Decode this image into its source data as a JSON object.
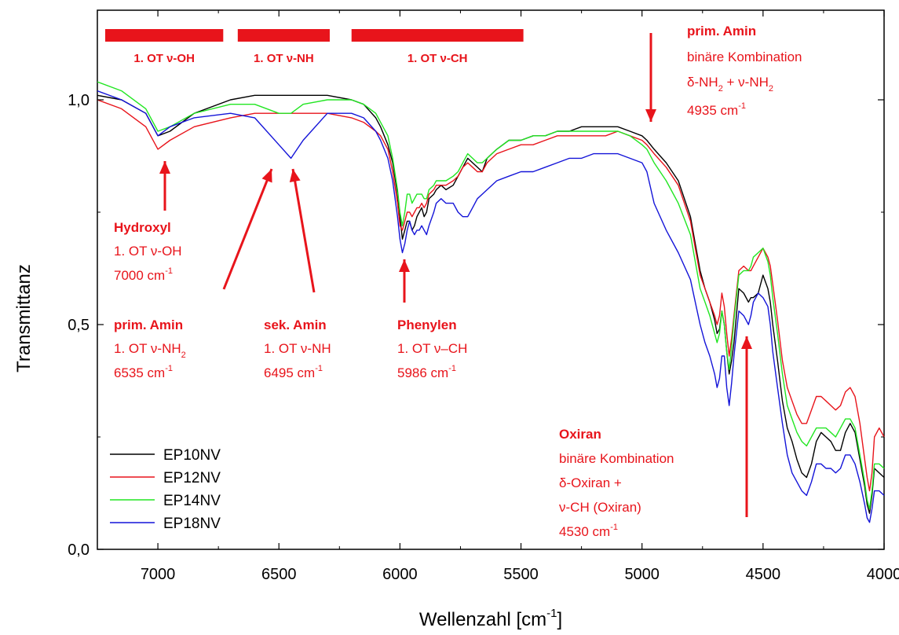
{
  "chart_data": {
    "type": "line",
    "title": "",
    "xlabel": "Wellenzahl [cm",
    "xlabel_sup": "-1",
    "xlabel_suffix": "]",
    "ylabel": "Transmittanz",
    "xlim": [
      7250,
      4000
    ],
    "ylim": [
      0,
      1.0
    ],
    "x_ticks": [
      {
        "value": 7000,
        "label": "7000"
      },
      {
        "value": 6500,
        "label": "6500"
      },
      {
        "value": 6000,
        "label": "6000"
      },
      {
        "value": 5500,
        "label": "5500"
      },
      {
        "value": 5000,
        "label": "5000"
      },
      {
        "value": 4500,
        "label": "4500"
      },
      {
        "value": 4000,
        "label": "4000"
      }
    ],
    "y_ticks": [
      {
        "value": 0.0,
        "label": "0,0"
      },
      {
        "value": 0.5,
        "label": "0,5"
      },
      {
        "value": 1.0,
        "label": "1,0"
      }
    ],
    "grid": false,
    "legend_position": "bottom-left",
    "colors": {
      "EP10NV": "#000000",
      "EP12NV": "#e8141b",
      "EP14NV": "#22e622",
      "EP18NV": "#1414d8",
      "annotation": "#e8141b"
    },
    "series": [
      {
        "name": "EP10NV",
        "color": "#000000",
        "x": [
          7250,
          7150,
          7050,
          7000,
          6950,
          6850,
          6700,
          6600,
          6500,
          6450,
          6400,
          6300,
          6200,
          6150,
          6100,
          6080,
          6050,
          6030,
          6010,
          6000,
          5990,
          5980,
          5970,
          5960,
          5950,
          5940,
          5930,
          5920,
          5910,
          5900,
          5890,
          5880,
          5860,
          5850,
          5830,
          5810,
          5780,
          5760,
          5740,
          5720,
          5700,
          5680,
          5660,
          5640,
          5620,
          5600,
          5550,
          5500,
          5450,
          5400,
          5350,
          5300,
          5250,
          5200,
          5150,
          5100,
          5050,
          5000,
          4980,
          4950,
          4900,
          4850,
          4800,
          4780,
          4760,
          4740,
          4720,
          4700,
          4690,
          4680,
          4670,
          4660,
          4650,
          4640,
          4630,
          4620,
          4600,
          4580,
          4560,
          4550,
          4540,
          4520,
          4500,
          4480,
          4470,
          4460,
          4440,
          4420,
          4400,
          4380,
          4360,
          4340,
          4320,
          4300,
          4280,
          4260,
          4240,
          4220,
          4200,
          4180,
          4160,
          4140,
          4120,
          4100,
          4080,
          4070,
          4060,
          4050,
          4040,
          4020,
          4000
        ],
        "y": [
          1.01,
          1.0,
          0.97,
          0.92,
          0.93,
          0.97,
          1.0,
          1.01,
          1.01,
          1.01,
          1.01,
          1.01,
          1.0,
          0.99,
          0.96,
          0.94,
          0.9,
          0.86,
          0.79,
          0.74,
          0.69,
          0.71,
          0.73,
          0.73,
          0.71,
          0.72,
          0.74,
          0.75,
          0.76,
          0.74,
          0.75,
          0.78,
          0.79,
          0.8,
          0.81,
          0.8,
          0.81,
          0.83,
          0.85,
          0.87,
          0.86,
          0.85,
          0.84,
          0.87,
          0.88,
          0.89,
          0.91,
          0.91,
          0.92,
          0.92,
          0.93,
          0.93,
          0.94,
          0.94,
          0.94,
          0.94,
          0.93,
          0.92,
          0.91,
          0.89,
          0.86,
          0.82,
          0.74,
          0.68,
          0.62,
          0.58,
          0.55,
          0.51,
          0.48,
          0.49,
          0.53,
          0.5,
          0.44,
          0.39,
          0.42,
          0.46,
          0.58,
          0.57,
          0.55,
          0.56,
          0.56,
          0.57,
          0.61,
          0.58,
          0.55,
          0.5,
          0.42,
          0.33,
          0.27,
          0.24,
          0.2,
          0.17,
          0.16,
          0.19,
          0.24,
          0.26,
          0.25,
          0.24,
          0.22,
          0.22,
          0.26,
          0.28,
          0.26,
          0.2,
          0.14,
          0.1,
          0.08,
          0.12,
          0.18,
          0.17,
          0.16
        ]
      },
      {
        "name": "EP12NV",
        "color": "#e8141b",
        "x": [
          7250,
          7150,
          7050,
          7000,
          6950,
          6850,
          6700,
          6600,
          6500,
          6450,
          6400,
          6300,
          6200,
          6150,
          6100,
          6080,
          6050,
          6030,
          6010,
          6000,
          5990,
          5980,
          5970,
          5960,
          5950,
          5940,
          5930,
          5920,
          5910,
          5900,
          5890,
          5880,
          5860,
          5850,
          5830,
          5810,
          5780,
          5760,
          5740,
          5720,
          5700,
          5680,
          5660,
          5640,
          5620,
          5600,
          5550,
          5500,
          5450,
          5400,
          5350,
          5300,
          5250,
          5200,
          5150,
          5100,
          5050,
          5000,
          4980,
          4950,
          4900,
          4850,
          4800,
          4780,
          4760,
          4740,
          4720,
          4700,
          4690,
          4680,
          4670,
          4660,
          4650,
          4640,
          4630,
          4620,
          4600,
          4580,
          4560,
          4550,
          4540,
          4520,
          4500,
          4480,
          4470,
          4460,
          4440,
          4420,
          4400,
          4380,
          4360,
          4340,
          4320,
          4300,
          4280,
          4260,
          4240,
          4220,
          4200,
          4180,
          4160,
          4140,
          4120,
          4100,
          4080,
          4070,
          4060,
          4050,
          4040,
          4020,
          4000
        ],
        "y": [
          1.0,
          0.98,
          0.94,
          0.89,
          0.91,
          0.94,
          0.96,
          0.97,
          0.97,
          0.97,
          0.97,
          0.97,
          0.96,
          0.95,
          0.93,
          0.92,
          0.89,
          0.84,
          0.77,
          0.72,
          0.71,
          0.73,
          0.75,
          0.75,
          0.74,
          0.75,
          0.76,
          0.76,
          0.77,
          0.76,
          0.77,
          0.79,
          0.8,
          0.81,
          0.81,
          0.81,
          0.82,
          0.83,
          0.85,
          0.86,
          0.85,
          0.84,
          0.84,
          0.86,
          0.87,
          0.88,
          0.89,
          0.9,
          0.9,
          0.91,
          0.92,
          0.92,
          0.92,
          0.92,
          0.92,
          0.93,
          0.92,
          0.91,
          0.9,
          0.88,
          0.85,
          0.81,
          0.73,
          0.67,
          0.61,
          0.58,
          0.55,
          0.52,
          0.5,
          0.52,
          0.57,
          0.54,
          0.48,
          0.43,
          0.47,
          0.52,
          0.62,
          0.63,
          0.62,
          0.62,
          0.63,
          0.65,
          0.67,
          0.65,
          0.63,
          0.59,
          0.51,
          0.42,
          0.36,
          0.33,
          0.3,
          0.28,
          0.28,
          0.31,
          0.34,
          0.34,
          0.33,
          0.32,
          0.31,
          0.32,
          0.35,
          0.36,
          0.34,
          0.28,
          0.2,
          0.16,
          0.13,
          0.17,
          0.25,
          0.27,
          0.25
        ]
      },
      {
        "name": "EP14NV",
        "color": "#22e622",
        "x": [
          7250,
          7150,
          7050,
          7000,
          6950,
          6850,
          6700,
          6600,
          6500,
          6450,
          6400,
          6300,
          6200,
          6150,
          6100,
          6080,
          6050,
          6030,
          6010,
          6000,
          5990,
          5980,
          5970,
          5960,
          5950,
          5940,
          5930,
          5920,
          5910,
          5900,
          5890,
          5880,
          5860,
          5850,
          5830,
          5810,
          5780,
          5760,
          5740,
          5720,
          5700,
          5680,
          5660,
          5640,
          5620,
          5600,
          5550,
          5500,
          5450,
          5400,
          5350,
          5300,
          5250,
          5200,
          5150,
          5100,
          5050,
          5000,
          4980,
          4950,
          4900,
          4850,
          4800,
          4780,
          4760,
          4740,
          4720,
          4700,
          4690,
          4680,
          4670,
          4660,
          4650,
          4640,
          4630,
          4620,
          4600,
          4580,
          4560,
          4550,
          4540,
          4520,
          4500,
          4480,
          4470,
          4460,
          4440,
          4420,
          4400,
          4380,
          4360,
          4340,
          4320,
          4300,
          4280,
          4260,
          4240,
          4220,
          4200,
          4180,
          4160,
          4140,
          4120,
          4100,
          4080,
          4070,
          4060,
          4050,
          4040,
          4020,
          4000
        ],
        "y": [
          1.04,
          1.02,
          0.98,
          0.93,
          0.94,
          0.97,
          0.99,
          0.99,
          0.97,
          0.97,
          0.99,
          1.0,
          1.0,
          0.99,
          0.97,
          0.95,
          0.92,
          0.87,
          0.8,
          0.75,
          0.72,
          0.75,
          0.79,
          0.79,
          0.77,
          0.78,
          0.79,
          0.79,
          0.79,
          0.78,
          0.78,
          0.8,
          0.81,
          0.82,
          0.82,
          0.82,
          0.83,
          0.84,
          0.86,
          0.88,
          0.87,
          0.86,
          0.86,
          0.87,
          0.88,
          0.89,
          0.91,
          0.91,
          0.92,
          0.92,
          0.93,
          0.93,
          0.93,
          0.93,
          0.93,
          0.93,
          0.92,
          0.9,
          0.89,
          0.86,
          0.82,
          0.77,
          0.7,
          0.64,
          0.58,
          0.55,
          0.52,
          0.48,
          0.46,
          0.48,
          0.53,
          0.5,
          0.44,
          0.4,
          0.45,
          0.51,
          0.61,
          0.62,
          0.62,
          0.63,
          0.65,
          0.66,
          0.67,
          0.64,
          0.61,
          0.56,
          0.48,
          0.39,
          0.32,
          0.29,
          0.26,
          0.24,
          0.23,
          0.25,
          0.27,
          0.27,
          0.27,
          0.26,
          0.25,
          0.27,
          0.29,
          0.29,
          0.27,
          0.21,
          0.15,
          0.11,
          0.09,
          0.13,
          0.19,
          0.19,
          0.18
        ]
      },
      {
        "name": "EP18NV",
        "color": "#1414d8",
        "x": [
          7250,
          7150,
          7050,
          7000,
          6950,
          6850,
          6700,
          6600,
          6500,
          6450,
          6400,
          6300,
          6200,
          6150,
          6100,
          6080,
          6050,
          6030,
          6010,
          6000,
          5990,
          5980,
          5970,
          5960,
          5950,
          5940,
          5930,
          5920,
          5910,
          5900,
          5890,
          5880,
          5860,
          5850,
          5830,
          5810,
          5780,
          5760,
          5740,
          5720,
          5700,
          5680,
          5660,
          5640,
          5620,
          5600,
          5550,
          5500,
          5450,
          5400,
          5350,
          5300,
          5250,
          5200,
          5150,
          5100,
          5050,
          5000,
          4980,
          4950,
          4900,
          4850,
          4800,
          4780,
          4760,
          4740,
          4720,
          4700,
          4690,
          4680,
          4670,
          4660,
          4650,
          4640,
          4630,
          4620,
          4600,
          4580,
          4560,
          4550,
          4540,
          4520,
          4500,
          4480,
          4470,
          4460,
          4440,
          4420,
          4400,
          4380,
          4360,
          4340,
          4320,
          4300,
          4280,
          4260,
          4240,
          4220,
          4200,
          4180,
          4160,
          4140,
          4120,
          4100,
          4080,
          4070,
          4060,
          4050,
          4040,
          4020,
          4000
        ],
        "y": [
          1.02,
          1.0,
          0.97,
          0.92,
          0.94,
          0.96,
          0.97,
          0.96,
          0.9,
          0.87,
          0.91,
          0.97,
          0.97,
          0.96,
          0.93,
          0.91,
          0.87,
          0.82,
          0.74,
          0.69,
          0.66,
          0.68,
          0.71,
          0.73,
          0.71,
          0.7,
          0.71,
          0.71,
          0.72,
          0.71,
          0.7,
          0.72,
          0.75,
          0.77,
          0.78,
          0.77,
          0.77,
          0.75,
          0.74,
          0.74,
          0.76,
          0.78,
          0.79,
          0.8,
          0.81,
          0.82,
          0.83,
          0.84,
          0.84,
          0.85,
          0.86,
          0.87,
          0.87,
          0.88,
          0.88,
          0.88,
          0.87,
          0.86,
          0.84,
          0.77,
          0.71,
          0.66,
          0.6,
          0.55,
          0.5,
          0.46,
          0.43,
          0.39,
          0.36,
          0.38,
          0.43,
          0.43,
          0.36,
          0.32,
          0.37,
          0.43,
          0.53,
          0.52,
          0.5,
          0.52,
          0.55,
          0.57,
          0.56,
          0.54,
          0.5,
          0.44,
          0.36,
          0.28,
          0.21,
          0.17,
          0.15,
          0.13,
          0.12,
          0.15,
          0.19,
          0.19,
          0.18,
          0.18,
          0.17,
          0.18,
          0.21,
          0.21,
          0.19,
          0.15,
          0.1,
          0.07,
          0.06,
          0.09,
          0.13,
          0.13,
          0.12
        ]
      }
    ],
    "bands": [
      {
        "from": 7250,
        "to": 6730,
        "label": "1. OT ν-OH"
      },
      {
        "from": 6670,
        "to": 6290,
        "label": "1. OT ν-NH"
      },
      {
        "from": 6200,
        "to": 5490,
        "label": "1. OT ν-CH"
      }
    ],
    "annotations": {
      "hydroxyl": {
        "title": "Hydroxyl",
        "line1": "1. OT ν-OH",
        "line2": "7000 cm",
        "sup": "-1"
      },
      "prim_amin_1": {
        "title": "prim. Amin",
        "line1": "1. OT ν-NH",
        "sub1": "2",
        "line2": "6535 cm",
        "sup": "-1"
      },
      "sek_amin": {
        "title": "sek. Amin",
        "line1": "1. OT ν-NH",
        "line2": "6495 cm",
        "sup": "-1"
      },
      "phenylen": {
        "title": "Phenylen",
        "line1": "1. OT ν–CH",
        "line2": "5986 cm",
        "sup": "-1"
      },
      "prim_amin_2": {
        "title": "prim. Amin",
        "line1": "binäre Kombination",
        "line2a": "δ-NH",
        "sub_a": "2",
        "line2b": " + ν-NH",
        "sub_b": "2",
        "line3": "4935 cm",
        "sup": "-1"
      },
      "oxiran": {
        "title": "Oxiran",
        "line1": "binäre Kombination",
        "line2": "δ-Oxiran +",
        "line3": "ν-CH (Oxiran)",
        "line4": "4530 cm",
        "sup": "-1"
      }
    }
  }
}
